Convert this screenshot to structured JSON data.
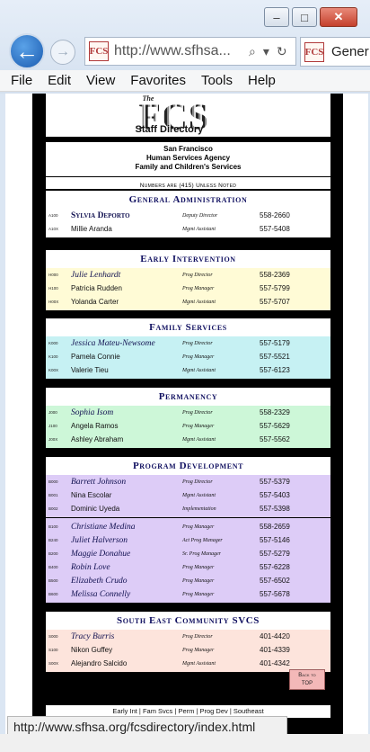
{
  "browser": {
    "url": "http://www.sfhsa...",
    "tab_title": "Gener",
    "favicon_text": "FCS",
    "window_buttons": {
      "minimize": "–",
      "maximize": "□",
      "close": "✕"
    },
    "menu": [
      "File",
      "Edit",
      "View",
      "Favorites",
      "Tools",
      "Help"
    ],
    "status_url": "http://www.sfhsa.org/fcsdirectory/index.html"
  },
  "header": {
    "logo_the": "The",
    "logo_fcs": "FCS",
    "logo_staff": "Staff Directory",
    "agency_line1": "San Francisco",
    "agency_line2": "Human Services Agency",
    "agency_line3": "Family and Children's Services",
    "note": "Numbers are (415) Unless Noted"
  },
  "sections": [
    {
      "title": "General Administration",
      "bg": "#ffffff",
      "rows": [
        {
          "code": "A100",
          "name": "Sylvia Deporto",
          "title": "Deputy Director",
          "phone": "558-2660",
          "style": "ga-dir"
        },
        {
          "code": "A10X",
          "name": "Millie Aranda",
          "title": "Mgmt Assistant",
          "phone": "557-5408",
          "style": ""
        }
      ]
    },
    {
      "title": "Early Intervention",
      "bg": "#fffbd6",
      "rows": [
        {
          "code": "H000",
          "name": "Julie Lenhardt",
          "title": "Prog Director",
          "phone": "558-2369",
          "style": "director"
        },
        {
          "code": "H100",
          "name": "Patricia Rudden",
          "title": "Prog Manager",
          "phone": "557-5799",
          "style": ""
        },
        {
          "code": "H00X",
          "name": "Yolanda Carter",
          "title": "Mgmt Assistant",
          "phone": "557-5707",
          "style": ""
        }
      ]
    },
    {
      "title": "Family Services",
      "bg": "#c6f1f3",
      "rows": [
        {
          "code": "K000",
          "name": "Jessica Mateu-Newsome",
          "title": "Prog Director",
          "phone": "557-5179",
          "style": "director"
        },
        {
          "code": "K100",
          "name": "Pamela Connie",
          "title": "Prog Manager",
          "phone": "557-5521",
          "style": ""
        },
        {
          "code": "K00X",
          "name": "Valerie Tieu",
          "title": "Mgmt Assistant",
          "phone": "557-6123",
          "style": ""
        }
      ]
    },
    {
      "title": "Permanency",
      "bg": "#cdf7d8",
      "rows": [
        {
          "code": "J000",
          "name": "Sophia Isom",
          "title": "Prog Director",
          "phone": "558-2329",
          "style": "director"
        },
        {
          "code": "J100",
          "name": "Angela Ramos",
          "title": "Prog Manager",
          "phone": "557-5629",
          "style": ""
        },
        {
          "code": "J00X",
          "name": "Ashley Abraham",
          "title": "Mgmt Assistant",
          "phone": "557-5562",
          "style": ""
        }
      ]
    },
    {
      "title": "Program Development",
      "bg": "#ddccf7",
      "rows": [
        {
          "code": "B000",
          "name": "Barrett Johnson",
          "title": "Prog Director",
          "phone": "557-5379",
          "style": "director"
        },
        {
          "code": "B001",
          "name": "Nina Escolar",
          "title": "Mgmt Assistant",
          "phone": "557-5403",
          "style": ""
        },
        {
          "code": "B002",
          "name": "Dominic Uyeda",
          "title": "Implementation",
          "phone": "557-5398",
          "style": ""
        }
      ],
      "rows2": [
        {
          "code": "B100",
          "name": "Christiane Medina",
          "title": "Prog Manager",
          "phone": "558-2659",
          "style": "director"
        },
        {
          "code": "B240",
          "name": "Juliet Halverson",
          "title": "Act Prog Manager",
          "phone": "557-5146",
          "style": "director"
        },
        {
          "code": "B200",
          "name": "Maggie Donahue",
          "title": "Sr. Prog Manager",
          "phone": "557-5279",
          "style": "director"
        },
        {
          "code": "B400",
          "name": "Robin Love",
          "title": "Prog Manager",
          "phone": "557-6228",
          "style": "director"
        },
        {
          "code": "B500",
          "name": "Elizabeth Crudo",
          "title": "Prog Manager",
          "phone": "557-6502",
          "style": "director"
        },
        {
          "code": "B600",
          "name": "Melissa Connelly",
          "title": "Prog Manager",
          "phone": "557-5678",
          "style": "director"
        }
      ]
    },
    {
      "title": "South East Community SVCS",
      "bg": "#fde4dc",
      "rows": [
        {
          "code": "S000",
          "name": "Tracy Burris",
          "title": "Prog Director",
          "phone": "401-4420",
          "style": "director"
        },
        {
          "code": "S100",
          "name": "Nikon Guffey",
          "title": "Prog Manager",
          "phone": "401-4339",
          "style": ""
        },
        {
          "code": "S00X",
          "name": "Alejandro Salcido",
          "title": "Mgmt Assistant",
          "phone": "401-4342",
          "style": ""
        }
      ]
    }
  ],
  "back_to_top": {
    "line1": "Back to",
    "line2": "TOP"
  },
  "footer_links": [
    "Early Int",
    "Fam Svcs",
    "Perm",
    "Prog Dev",
    "Southeast"
  ]
}
